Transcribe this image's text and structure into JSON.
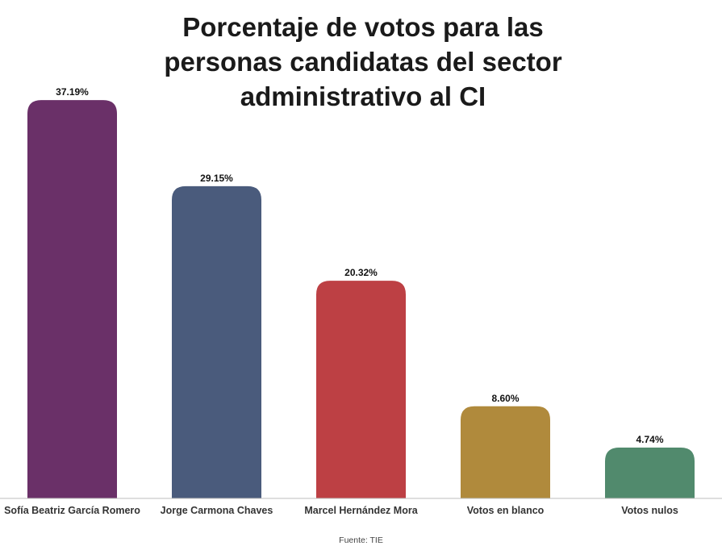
{
  "chart_data": {
    "type": "bar",
    "title": "Porcentaje de votos para las personas candidatas del sector administrativo al CI",
    "categories": [
      "Sofía Beatriz García Romero",
      "Jorge Carmona Chaves",
      "Marcel Hernández Mora",
      "Votos en blanco",
      "Votos nulos"
    ],
    "values": [
      37.19,
      29.15,
      20.32,
      8.6,
      4.74
    ],
    "value_labels": [
      "37.19%",
      "29.15%",
      "20.32%",
      "8.60%",
      "4.74%"
    ],
    "colors": [
      "#6a3068",
      "#4a5b7c",
      "#bd4044",
      "#b08a3c",
      "#518a6d"
    ],
    "xlabel": "",
    "ylabel": "",
    "ylim": [
      0,
      40
    ],
    "grid": false,
    "legend": "none"
  },
  "footer": {
    "source": "Fuente: TIE"
  }
}
